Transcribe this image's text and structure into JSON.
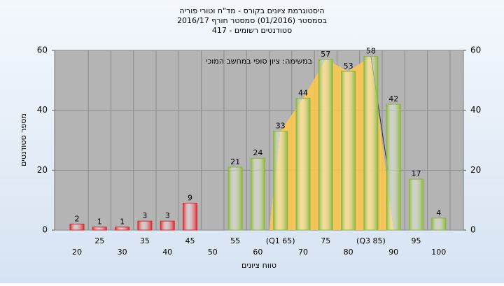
{
  "chart_data": {
    "type": "bar",
    "title": "היסטוגרמת ציונים בקורס - מד\"ח וטורי פוריה",
    "subtitle": "בסמסטר  (01/2016)  סמסטר חורף 2016/17",
    "subtitle2": "סטודנטים רשומים - 417",
    "annotation": "במשימה: ציון סופי במחשב המוכי",
    "x_label": "טווח ציונים",
    "y_label": "מספר סטודנטים",
    "categories": [
      "20",
      "25",
      "30",
      "35",
      "40",
      "45",
      "50",
      "55",
      "60",
      "(Q1 65)",
      "70",
      "75",
      "80",
      "(Q3 85)",
      "90",
      "95",
      "100"
    ],
    "values": [
      2,
      1,
      1,
      3,
      3,
      9,
      null,
      21,
      24,
      33,
      44,
      57,
      53,
      58,
      42,
      17,
      4
    ],
    "colors": [
      "#d9282f",
      "#d9282f",
      "#d9282f",
      "#d9282f",
      "#d9282f",
      "#d9282f",
      "#d9282f",
      "#8db53c",
      "#8db53c",
      "#8db53c",
      "#8db53c",
      "#8db53c",
      "#8db53c",
      "#8db53c",
      "#8db53c",
      "#8db53c",
      "#8db53c"
    ],
    "quartile_area_color": "#ffc94a",
    "ylim": [
      0,
      60
    ],
    "yticks": [
      0,
      20,
      40,
      60
    ],
    "y2lim": [
      0,
      60
    ],
    "y2ticks": [
      0,
      20,
      40,
      60
    ],
    "grid": true
  }
}
